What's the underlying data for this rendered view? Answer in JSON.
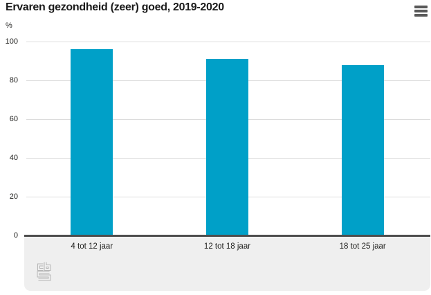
{
  "header": {
    "title": "Ervaren gezondheid (zeer) goed, 2019-2020",
    "menu_icon": "hamburger-menu-icon"
  },
  "chart_data": {
    "type": "bar",
    "title": "Ervaren gezondheid (zeer) goed, 2019-2020",
    "ylabel": "%",
    "categories": [
      "4 tot 12 jaar",
      "12 tot 18 jaar",
      "18 tot 25 jaar"
    ],
    "values": [
      96,
      91,
      88
    ],
    "ylim": [
      0,
      100
    ],
    "yticks": [
      0,
      20,
      40,
      60,
      80,
      100
    ],
    "grid": true,
    "legend": "none",
    "bar_color": "#00a0c8"
  },
  "colors": {
    "bar": "#00a0c8",
    "axis_line": "#4d4d4d",
    "gridline": "#dcdcdc",
    "footer_background": "#efefef",
    "menu_icon": "#595959",
    "title_text": "#1a1a1a",
    "logo_gray": "#b5b5b5"
  },
  "footer": {
    "logo": "cbs-logo"
  }
}
